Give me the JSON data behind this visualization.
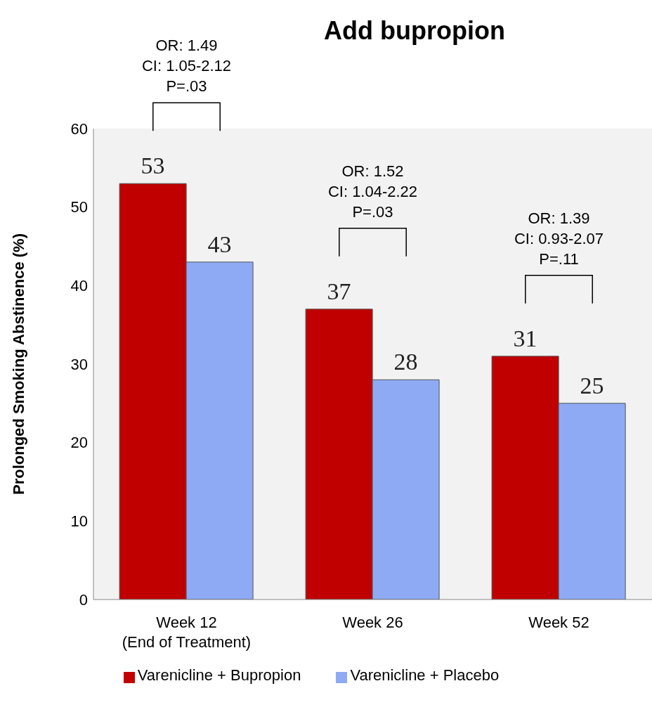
{
  "chart_data": {
    "type": "bar",
    "title": "Add bupropion",
    "ylabel": "Prolonged Smoking Abstinence (%)",
    "categories": [
      "Week 12\n(End of Treatment)",
      "Week 26",
      "Week 52"
    ],
    "series": [
      {
        "name": "Varenicline + Bupropion",
        "color": "#c00000",
        "values": [
          53,
          37,
          31
        ]
      },
      {
        "name": "Varenicline + Placebo",
        "color": "#8eaaf5",
        "values": [
          43,
          28,
          25
        ]
      }
    ],
    "ylim": [
      0,
      60
    ],
    "yticks": [
      0,
      10,
      20,
      30,
      40,
      50,
      60
    ],
    "grid": false,
    "legend": "bottom",
    "data_labels": true,
    "annotations": [
      "OR: 1.49\nCI: 1.05-2.12\nP=.03",
      "OR: 1.52\nCI: 1.04-2.22\nP=.03",
      "OR: 1.39\nCI: 0.93-2.07\nP=.11"
    ]
  }
}
